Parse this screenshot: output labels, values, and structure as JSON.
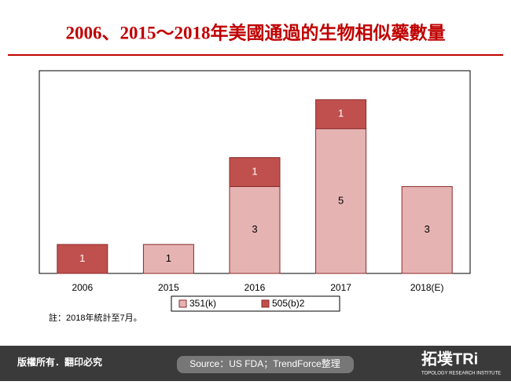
{
  "chart_data": {
    "type": "stacked-bar",
    "title": "2006、2015～2018年美國通過的生物相似藥數量",
    "categories": [
      "2006",
      "2015",
      "2016",
      "2017",
      "2018(E)"
    ],
    "series": [
      {
        "name": "351(k)",
        "color": "#e6b3b3",
        "values": [
          0,
          1,
          3,
          5,
          3
        ]
      },
      {
        "name": "505(b)2",
        "color": "#c0504d",
        "values": [
          1,
          0,
          1,
          1,
          0
        ]
      }
    ],
    "ylim": [
      0,
      7
    ],
    "note": "註：2018年統計至7月。"
  },
  "footer": {
    "copyright": "版權所有．翻印必究",
    "source": "Source：US FDA；TrendForce整理",
    "logo": "拓墣TRi",
    "logo_sub": "TOPOLOGY RESEARCH INSTITUTE"
  }
}
